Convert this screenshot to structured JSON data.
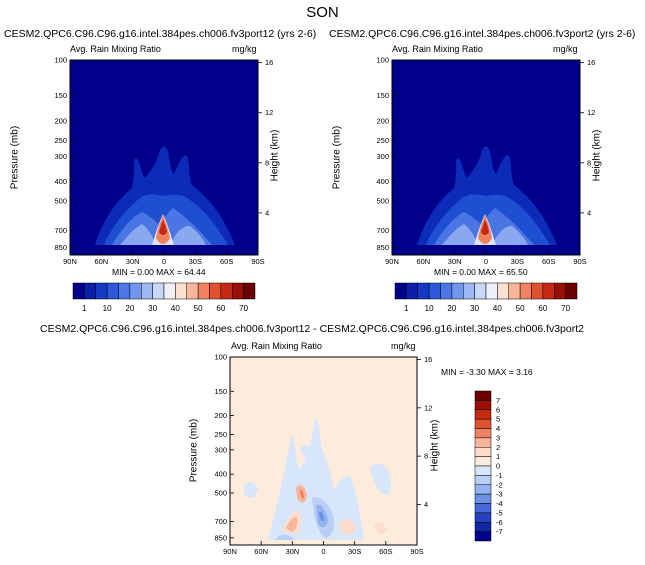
{
  "figure": {
    "season_title": "SON"
  },
  "chart_data": [
    {
      "type": "heatmap",
      "id": "top-left",
      "title": "CESM2.QPC6.C96.C96.g16.intel.384pes.ch006.fv3port12 (yrs 2-6)",
      "variable_label": "Avg. Rain Mixing Ratio",
      "units_label": "mg/kg",
      "ylabel": "Pressure (mb)",
      "ylabel_right": "Height (km)",
      "x_ticks": [
        "90N",
        "60N",
        "30N",
        "0",
        "30S",
        "60S",
        "90S"
      ],
      "y_ticks": [
        "100",
        "150",
        "200",
        "250",
        "300",
        "400",
        "500",
        "700",
        "850"
      ],
      "y_ticks_right": [
        "16",
        "12",
        "8",
        "4"
      ],
      "min_text": "MIN =   0.00   MAX =  64.44",
      "min": 0.0,
      "max": 64.44,
      "colorbar_labels": [
        "1",
        "10",
        "20",
        "30",
        "40",
        "50",
        "60",
        "70"
      ]
    },
    {
      "type": "heatmap",
      "id": "top-right",
      "title": "CESM2.QPC6.C96.C96.g16.intel.384pes.ch006.fv3port2 (yrs 2-6)",
      "variable_label": "Avg. Rain Mixing Ratio",
      "units_label": "mg/kg",
      "ylabel": "Pressure (mb)",
      "ylabel_right": "Height (km)",
      "x_ticks": [
        "90N",
        "60N",
        "30N",
        "0",
        "30S",
        "60S",
        "90S"
      ],
      "y_ticks": [
        "100",
        "150",
        "200",
        "250",
        "300",
        "400",
        "500",
        "700",
        "850"
      ],
      "y_ticks_right": [
        "16",
        "12",
        "8",
        "4"
      ],
      "min_text": "MIN =   0.00   MAX =  65.50",
      "min": 0.0,
      "max": 65.5,
      "colorbar_labels": [
        "1",
        "10",
        "20",
        "30",
        "40",
        "50",
        "60",
        "70"
      ]
    },
    {
      "type": "heatmap",
      "id": "difference",
      "title": "CESM2.QPC6.C96.C96.g16.intel.384pes.ch006.fv3port12 - CESM2.QPC6.C96.C96.g16.intel.384pes.ch006.fv3port2",
      "variable_label": "Avg. Rain Mixing Ratio",
      "units_label": "mg/kg",
      "ylabel": "Pressure (mb)",
      "ylabel_right": "Height (km)",
      "x_ticks": [
        "90N",
        "60N",
        "30N",
        "0",
        "30S",
        "60S",
        "90S"
      ],
      "y_ticks": [
        "100",
        "150",
        "200",
        "250",
        "300",
        "400",
        "500",
        "700",
        "850"
      ],
      "y_ticks_right": [
        "16",
        "12",
        "8",
        "4"
      ],
      "min_text": "MIN = -3.30   MAX =   3.16",
      "min": -3.3,
      "max": 3.16,
      "colorbar_labels": [
        "7",
        "6",
        "5",
        "4",
        "3",
        "2",
        "1",
        "0",
        "-1",
        "-2",
        "-3",
        "-4",
        "-5",
        "-6",
        "-7"
      ]
    }
  ],
  "colors": {
    "seq_scale": [
      "#00008b",
      "#0b1fa8",
      "#1539c4",
      "#2a58d9",
      "#4b78e6",
      "#7096ee",
      "#9eb8f4",
      "#c6d7f8",
      "#eef0f8",
      "#fde0d0",
      "#f9b49a",
      "#f2825f",
      "#e2512f",
      "#c42a12",
      "#9a1004",
      "#6a0000"
    ],
    "diff_scale": [
      "#6a0000",
      "#9a1004",
      "#c42a12",
      "#e2512f",
      "#f2825f",
      "#f9b49a",
      "#fddccc",
      "#fdebdc",
      "#d8e6fb",
      "#b9cff6",
      "#93b2ef",
      "#6b90e6",
      "#4468d8",
      "#2442c0",
      "#1227a6",
      "#00008b"
    ]
  }
}
